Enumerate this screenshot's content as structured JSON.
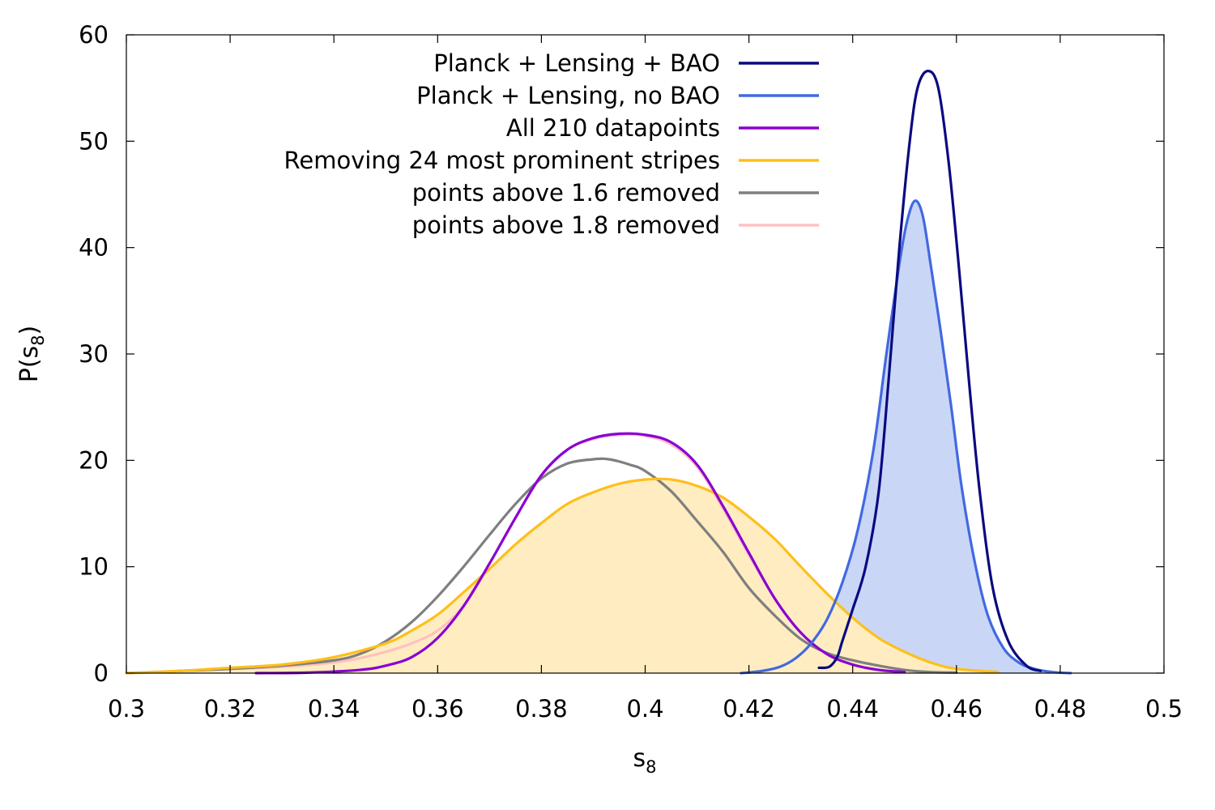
{
  "chart_data": {
    "type": "line",
    "title": "",
    "xlabel": "s",
    "xlabel_sub": "8",
    "ylabel": "P(s",
    "ylabel_sub": "8",
    "ylabel_close": ")",
    "xlim": [
      0.3,
      0.5
    ],
    "ylim": [
      0,
      60
    ],
    "xticks": [
      0.3,
      0.32,
      0.34,
      0.36,
      0.38,
      0.4,
      0.42,
      0.44,
      0.46,
      0.48,
      0.5
    ],
    "xtick_labels": [
      "0.3",
      "0.32",
      "0.34",
      "0.36",
      "0.38",
      "0.4",
      "0.42",
      "0.44",
      "0.46",
      "0.48",
      "0.5"
    ],
    "yticks": [
      0,
      10,
      20,
      30,
      40,
      50,
      60
    ],
    "ytick_labels": [
      "0",
      "10",
      "20",
      "30",
      "40",
      "50",
      "60"
    ],
    "grid": false,
    "legend_position": "top-center",
    "series": [
      {
        "name": "Planck + Lensing + BAO",
        "color": "#0a0a80",
        "fill": false,
        "x": [
          0.4335,
          0.4355,
          0.437,
          0.438,
          0.44,
          0.4425,
          0.445,
          0.447,
          0.449,
          0.451,
          0.4525,
          0.4545,
          0.4565,
          0.4585,
          0.4605,
          0.4625,
          0.4645,
          0.467,
          0.47,
          0.4735,
          0.4762
        ],
        "y": [
          0.5,
          0.6,
          1.5,
          3.0,
          6.0,
          10.0,
          17.0,
          28.0,
          40.0,
          50.0,
          55.0,
          56.6,
          55.0,
          48.0,
          38.0,
          27.0,
          17.0,
          8.0,
          3.0,
          0.7,
          0.2
        ]
      },
      {
        "name": "Planck + Lensing, no BAO",
        "color": "#4169e1",
        "fill": true,
        "fill_color": "#cad6f5",
        "x": [
          0.4185,
          0.4225,
          0.426,
          0.429,
          0.432,
          0.435,
          0.438,
          0.441,
          0.444,
          0.4465,
          0.449,
          0.4505,
          0.452,
          0.4535,
          0.455,
          0.457,
          0.459,
          0.461,
          0.4635,
          0.466,
          0.469,
          0.472,
          0.475,
          0.4785,
          0.482
        ],
        "y": [
          0.0,
          0.2,
          0.6,
          1.4,
          2.8,
          5.0,
          8.5,
          13.5,
          21.0,
          30.0,
          38.5,
          42.5,
          44.4,
          43.0,
          38.5,
          32.0,
          25.0,
          17.5,
          10.5,
          5.5,
          2.4,
          1.0,
          0.4,
          0.1,
          0.0
        ]
      },
      {
        "name": "All 210 datapoints",
        "color": "#8a00d4",
        "fill": false,
        "x": [
          0.325,
          0.335,
          0.345,
          0.35,
          0.355,
          0.36,
          0.365,
          0.37,
          0.375,
          0.38,
          0.385,
          0.39,
          0.395,
          0.4,
          0.405,
          0.41,
          0.415,
          0.42,
          0.425,
          0.43,
          0.435,
          0.44,
          0.445,
          0.45
        ],
        "y": [
          0.0,
          0.05,
          0.3,
          0.7,
          1.5,
          3.3,
          6.3,
          10.3,
          14.6,
          18.6,
          21.0,
          22.1,
          22.5,
          22.4,
          21.7,
          19.6,
          15.7,
          11.3,
          7.0,
          3.8,
          1.8,
          0.8,
          0.3,
          0.1
        ]
      },
      {
        "name": "Removing 24 most prominent stripes",
        "color": "#ffbf1a",
        "fill": true,
        "fill_color": "#ffedc1",
        "x": [
          0.3,
          0.31,
          0.32,
          0.33,
          0.34,
          0.35,
          0.355,
          0.36,
          0.365,
          0.37,
          0.375,
          0.38,
          0.385,
          0.39,
          0.395,
          0.4,
          0.405,
          0.41,
          0.415,
          0.42,
          0.425,
          0.43,
          0.435,
          0.44,
          0.445,
          0.45,
          0.455,
          0.46,
          0.468
        ],
        "y": [
          0.0,
          0.2,
          0.5,
          0.8,
          1.5,
          2.8,
          4.0,
          5.5,
          7.6,
          9.8,
          12.1,
          14.1,
          15.9,
          17.0,
          17.8,
          18.2,
          18.2,
          17.6,
          16.5,
          14.7,
          12.6,
          10.0,
          7.5,
          5.2,
          3.3,
          2.0,
          1.0,
          0.4,
          0.1
        ]
      },
      {
        "name": "points above 1.6 removed",
        "color": "#7f7f7f",
        "fill": false,
        "x": [
          0.31,
          0.32,
          0.33,
          0.34,
          0.345,
          0.35,
          0.355,
          0.36,
          0.365,
          0.37,
          0.375,
          0.38,
          0.385,
          0.39,
          0.393,
          0.397,
          0.4,
          0.405,
          0.41,
          0.415,
          0.42,
          0.425,
          0.43,
          0.435,
          0.44,
          0.445,
          0.45,
          0.455,
          0.46
        ],
        "y": [
          0.2,
          0.4,
          0.7,
          1.2,
          1.8,
          3.0,
          4.8,
          7.2,
          10.0,
          13.0,
          15.9,
          18.3,
          19.7,
          20.1,
          20.1,
          19.6,
          19.0,
          17.1,
          14.3,
          11.4,
          8.0,
          5.4,
          3.2,
          1.9,
          1.2,
          0.7,
          0.3,
          0.1,
          0.05
        ]
      },
      {
        "name": "points above 1.8 removed",
        "color": "#ffc0c0",
        "fill": false,
        "x": [
          0.3,
          0.31,
          0.32,
          0.33,
          0.34,
          0.345,
          0.35,
          0.355,
          0.36,
          0.365,
          0.37,
          0.375,
          0.38,
          0.385,
          0.39,
          0.395,
          0.4,
          0.405,
          0.41,
          0.415,
          0.42,
          0.425,
          0.43,
          0.435,
          0.44,
          0.445,
          0.45
        ],
        "y": [
          0.0,
          0.2,
          0.4,
          0.6,
          1.0,
          1.4,
          2.0,
          2.8,
          4.0,
          6.3,
          10.3,
          14.6,
          18.6,
          21.0,
          22.0,
          22.4,
          22.3,
          21.5,
          19.4,
          15.5,
          11.1,
          7.0,
          3.8,
          1.8,
          0.8,
          0.3,
          0.1
        ]
      }
    ],
    "legend_order": [
      0,
      1,
      2,
      3,
      4,
      5
    ]
  }
}
